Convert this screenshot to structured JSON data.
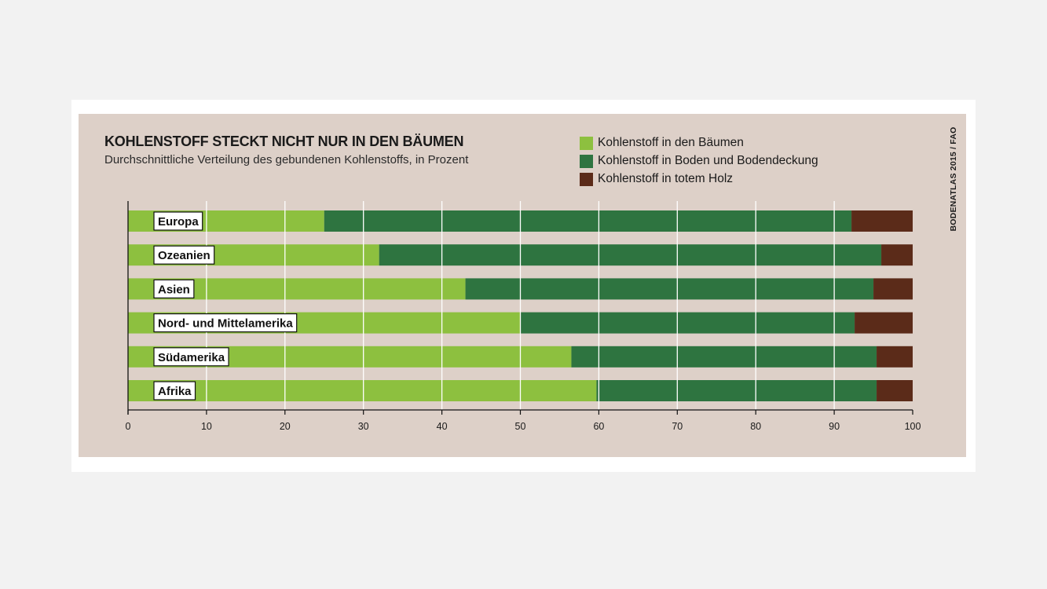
{
  "chart_data": {
    "type": "bar",
    "orientation": "horizontal",
    "stacked": true,
    "title": "KOHLENSTOFF STECKT NICHT NUR IN DEN BÄUMEN",
    "subtitle": "Durchschnittliche Verteilung des gebundenen Kohlenstoffs, in Prozent",
    "source": "BODENATLAS 2015 / FAO",
    "categories": [
      "Europa",
      "Ozeanien",
      "Asien",
      "Nord- und Mittelamerika",
      "Südamerika",
      "Afrika"
    ],
    "series": [
      {
        "name": "Kohlenstoff in den Bäumen",
        "color": "#8dc03f",
        "values": [
          25,
          32,
          43,
          50,
          56.5,
          59.7
        ]
      },
      {
        "name": "Kohlenstoff in Boden und Bodendeckung",
        "color": "#2e7440",
        "values": [
          67.2,
          64,
          52,
          42.6,
          38.9,
          35.7
        ]
      },
      {
        "name": "Kohlenstoff in totem Holz",
        "color": "#5b2b19",
        "values": [
          7.8,
          4,
          5,
          7.4,
          4.6,
          4.6
        ]
      }
    ],
    "xlim": [
      0,
      100
    ],
    "xticks": [
      0,
      10,
      20,
      30,
      40,
      50,
      60,
      70,
      80,
      90,
      100
    ],
    "grid": true,
    "legend_position": "top-right"
  }
}
